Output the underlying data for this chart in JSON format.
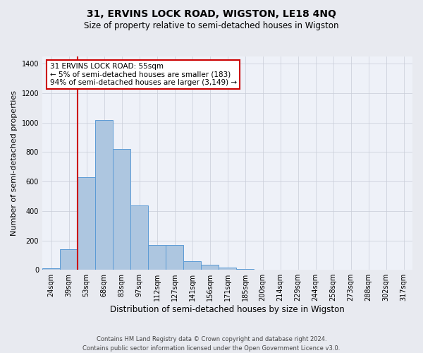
{
  "title": "31, ERVINS LOCK ROAD, WIGSTON, LE18 4NQ",
  "subtitle": "Size of property relative to semi-detached houses in Wigston",
  "xlabel": "Distribution of semi-detached houses by size in Wigston",
  "ylabel": "Number of semi-detached properties",
  "footer_line1": "Contains HM Land Registry data © Crown copyright and database right 2024.",
  "footer_line2": "Contains public sector information licensed under the Open Government Licence v3.0.",
  "annotation_line1": "31 ERVINS LOCK ROAD: 55sqm",
  "annotation_line2": "← 5% of semi-detached houses are smaller (183)",
  "annotation_line3": "94% of semi-detached houses are larger (3,149) →",
  "bar_categories": [
    "24sqm",
    "39sqm",
    "53sqm",
    "68sqm",
    "83sqm",
    "97sqm",
    "112sqm",
    "127sqm",
    "141sqm",
    "156sqm",
    "171sqm",
    "185sqm",
    "200sqm",
    "214sqm",
    "229sqm",
    "244sqm",
    "258sqm",
    "273sqm",
    "288sqm",
    "302sqm",
    "317sqm"
  ],
  "bar_values": [
    10,
    140,
    630,
    1020,
    820,
    440,
    170,
    170,
    60,
    35,
    15,
    5,
    2,
    0,
    0,
    0,
    0,
    0,
    0,
    0,
    0
  ],
  "bar_color": "#adc6e0",
  "bar_edge_color": "#5b9bd5",
  "vline_color": "#cc0000",
  "vline_x": 1.5,
  "ylim": [
    0,
    1450
  ],
  "yticks": [
    0,
    200,
    400,
    600,
    800,
    1000,
    1200,
    1400
  ],
  "grid_color": "#c8ccd8",
  "bg_color": "#e8eaf0",
  "plot_bg_color": "#eef1f8",
  "annotation_box_edge": "#cc0000",
  "annotation_box_fill": "white",
  "title_fontsize": 10,
  "subtitle_fontsize": 8.5,
  "ylabel_fontsize": 8,
  "xlabel_fontsize": 8.5,
  "tick_fontsize": 7,
  "footer_fontsize": 6,
  "ann_fontsize": 7.5
}
